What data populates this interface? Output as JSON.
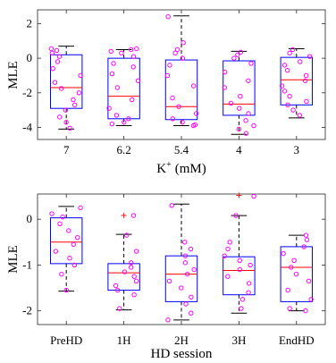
{
  "chart_data": [
    {
      "type": "box",
      "xlabel": "K",
      "xlabel_sup": "+",
      "xlabel_unit": "(mM)",
      "ylabel": "MLE",
      "ylim": [
        -4.7,
        2.8
      ],
      "yticks": [
        -4,
        -2,
        0,
        2
      ],
      "categories": [
        "7",
        "6.2",
        "5.4",
        "4",
        "3"
      ],
      "colors": {
        "box": "#0000ff",
        "median": "#ff0000",
        "points": "#ff00ff",
        "whisker": "#000000"
      },
      "boxes": [
        {
          "q1": -2.9,
          "median": -1.7,
          "q3": 0.2,
          "lower_whisker": -4.1,
          "upper_whisker": 0.7,
          "outliers": []
        },
        {
          "q1": -3.5,
          "median": -2.2,
          "q3": 0.0,
          "lower_whisker": -3.9,
          "upper_whisker": 0.5,
          "outliers": []
        },
        {
          "q1": -3.55,
          "median": -2.8,
          "q3": -0.1,
          "lower_whisker": -3.9,
          "upper_whisker": 2.45,
          "outliers": []
        },
        {
          "q1": -3.3,
          "median": -2.65,
          "q3": -0.15,
          "lower_whisker": -4.4,
          "upper_whisker": 0.4,
          "outliers": []
        },
        {
          "q1": -2.7,
          "median": -1.25,
          "q3": 0.05,
          "lower_whisker": -3.45,
          "upper_whisker": 0.55,
          "outliers": []
        }
      ],
      "points": [
        [
          0.55,
          0.45,
          0.3,
          0.1,
          -0.2,
          -0.6,
          -1.0,
          -1.4,
          -1.75,
          -2.0,
          -2.4,
          -2.7,
          -3.0,
          -3.4,
          -3.7,
          -4.05
        ],
        [
          0.55,
          0.5,
          0.4,
          0.3,
          0.1,
          -0.3,
          -0.5,
          -0.9,
          -1.3,
          -1.7,
          -2.4,
          -2.9,
          -3.3,
          -3.5,
          -3.7,
          -3.8
        ],
        [
          2.4,
          0.9,
          0.5,
          0.3,
          0.0,
          -0.4,
          -1.0,
          -1.6,
          -2.3,
          -2.8,
          -3.2,
          -3.5,
          -3.7,
          -3.85,
          -3.9
        ],
        [
          0.35,
          0.2,
          0.0,
          -0.3,
          -0.8,
          -1.3,
          -1.7,
          -2.2,
          -2.6,
          -2.9,
          -3.2,
          -3.6,
          -3.9,
          -4.1,
          -4.35
        ],
        [
          0.5,
          0.3,
          0.1,
          -0.2,
          -0.4,
          -0.7,
          -1.0,
          -1.3,
          -1.6,
          -1.9,
          -2.2,
          -2.5,
          -2.7,
          -3.0,
          -3.3
        ]
      ]
    },
    {
      "type": "box",
      "xlabel": "HD session",
      "ylabel": "MLE",
      "ylim": [
        -2.3,
        0.55
      ],
      "yticks": [
        -2,
        -1,
        0
      ],
      "categories": [
        "PreHD",
        "1H",
        "2H",
        "3H",
        "EndHD"
      ],
      "colors": {
        "box": "#0000ff",
        "median": "#ff0000",
        "points": "#ff00ff",
        "whisker": "#000000"
      },
      "boxes": [
        {
          "q1": -0.97,
          "median": -0.5,
          "q3": 0.03,
          "lower_whisker": -1.57,
          "upper_whisker": 0.28,
          "outliers": []
        },
        {
          "q1": -1.55,
          "median": -1.17,
          "q3": -0.97,
          "lower_whisker": -1.98,
          "upper_whisker": -0.33,
          "outliers": [
            0.08
          ]
        },
        {
          "q1": -1.8,
          "median": -1.2,
          "q3": -0.8,
          "lower_whisker": -2.2,
          "upper_whisker": 0.33,
          "outliers": []
        },
        {
          "q1": -1.65,
          "median": -1.12,
          "q3": -0.82,
          "lower_whisker": -2.05,
          "upper_whisker": 0.08,
          "outliers": [
            0.52
          ]
        },
        {
          "q1": -1.8,
          "median": -1.05,
          "q3": -0.6,
          "lower_whisker": -2.0,
          "upper_whisker": -0.35,
          "outliers": []
        }
      ],
      "points": [
        [
          0.25,
          0.12,
          0.05,
          -0.1,
          -0.25,
          -0.4,
          -0.55,
          -0.7,
          -0.85,
          -1.0,
          -1.2,
          -1.55
        ],
        [
          0.08,
          -0.35,
          -0.7,
          -0.95,
          -1.05,
          -1.15,
          -1.25,
          -1.35,
          -1.45,
          -1.55,
          -1.65,
          -1.95
        ],
        [
          0.3,
          -0.5,
          -0.65,
          -0.8,
          -0.95,
          -1.1,
          -1.2,
          -1.35,
          -1.5,
          -1.7,
          -1.85,
          -2.05,
          -2.2
        ],
        [
          0.5,
          0.08,
          -0.5,
          -0.65,
          -0.8,
          -0.9,
          -1.0,
          -1.1,
          -1.25,
          -1.4,
          -1.6,
          -1.75,
          -1.95
        ],
        [
          -0.35,
          -0.45,
          -0.6,
          -0.75,
          -0.9,
          -1.05,
          -1.2,
          -1.35,
          -1.55,
          -1.75,
          -1.95,
          -2.0
        ]
      ]
    }
  ]
}
